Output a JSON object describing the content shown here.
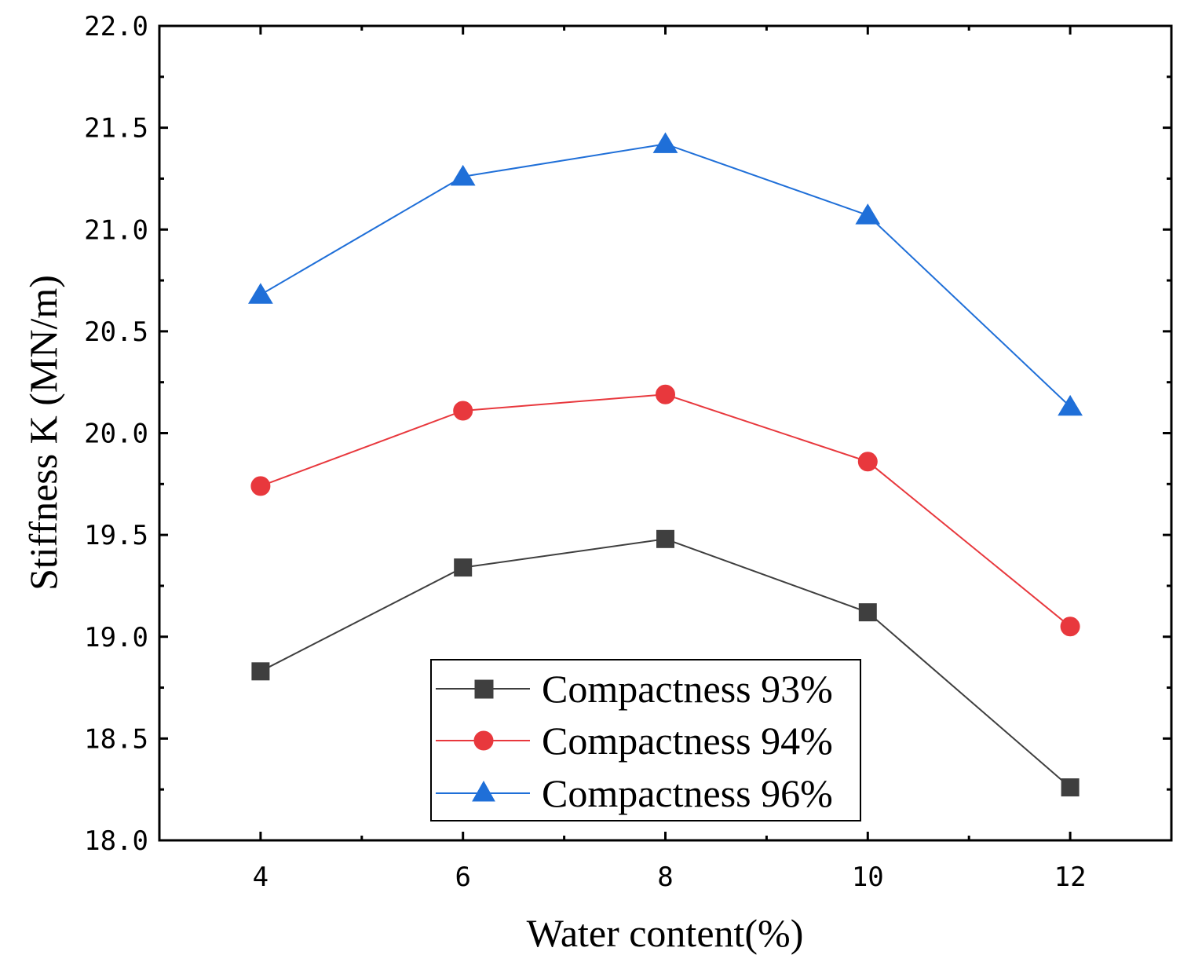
{
  "chart_data": {
    "type": "line",
    "title": "",
    "xlabel": "Water content(%)",
    "ylabel": "Stiffness K (MN/m)",
    "x": [
      4,
      6,
      8,
      10,
      12
    ],
    "xlim": [
      3,
      13
    ],
    "ylim": [
      18.0,
      22.0
    ],
    "xticks": [
      4,
      6,
      8,
      10,
      12
    ],
    "xtick_labels": [
      "4",
      "6",
      "8",
      "10",
      "12"
    ],
    "yticks": [
      18.0,
      18.5,
      19.0,
      19.5,
      20.0,
      20.5,
      21.0,
      21.5,
      22.0
    ],
    "ytick_labels": [
      "18.0",
      "18.5",
      "19.0",
      "19.5",
      "20.0",
      "20.5",
      "21.0",
      "21.5",
      "22.0"
    ],
    "grid": false,
    "legend_position": "bottom-center",
    "series": [
      {
        "name": "Compactness 93%",
        "marker": "square",
        "color": "#3f3f3f",
        "values": [
          18.83,
          19.34,
          19.48,
          19.12,
          18.26
        ]
      },
      {
        "name": "Compactness 94%",
        "marker": "circle",
        "color": "#e8383d",
        "values": [
          19.74,
          20.11,
          20.19,
          19.86,
          19.05
        ]
      },
      {
        "name": "Compactness 96%",
        "marker": "triangle",
        "color": "#1f6fd8",
        "values": [
          20.68,
          21.26,
          21.42,
          21.07,
          20.13
        ]
      }
    ]
  }
}
